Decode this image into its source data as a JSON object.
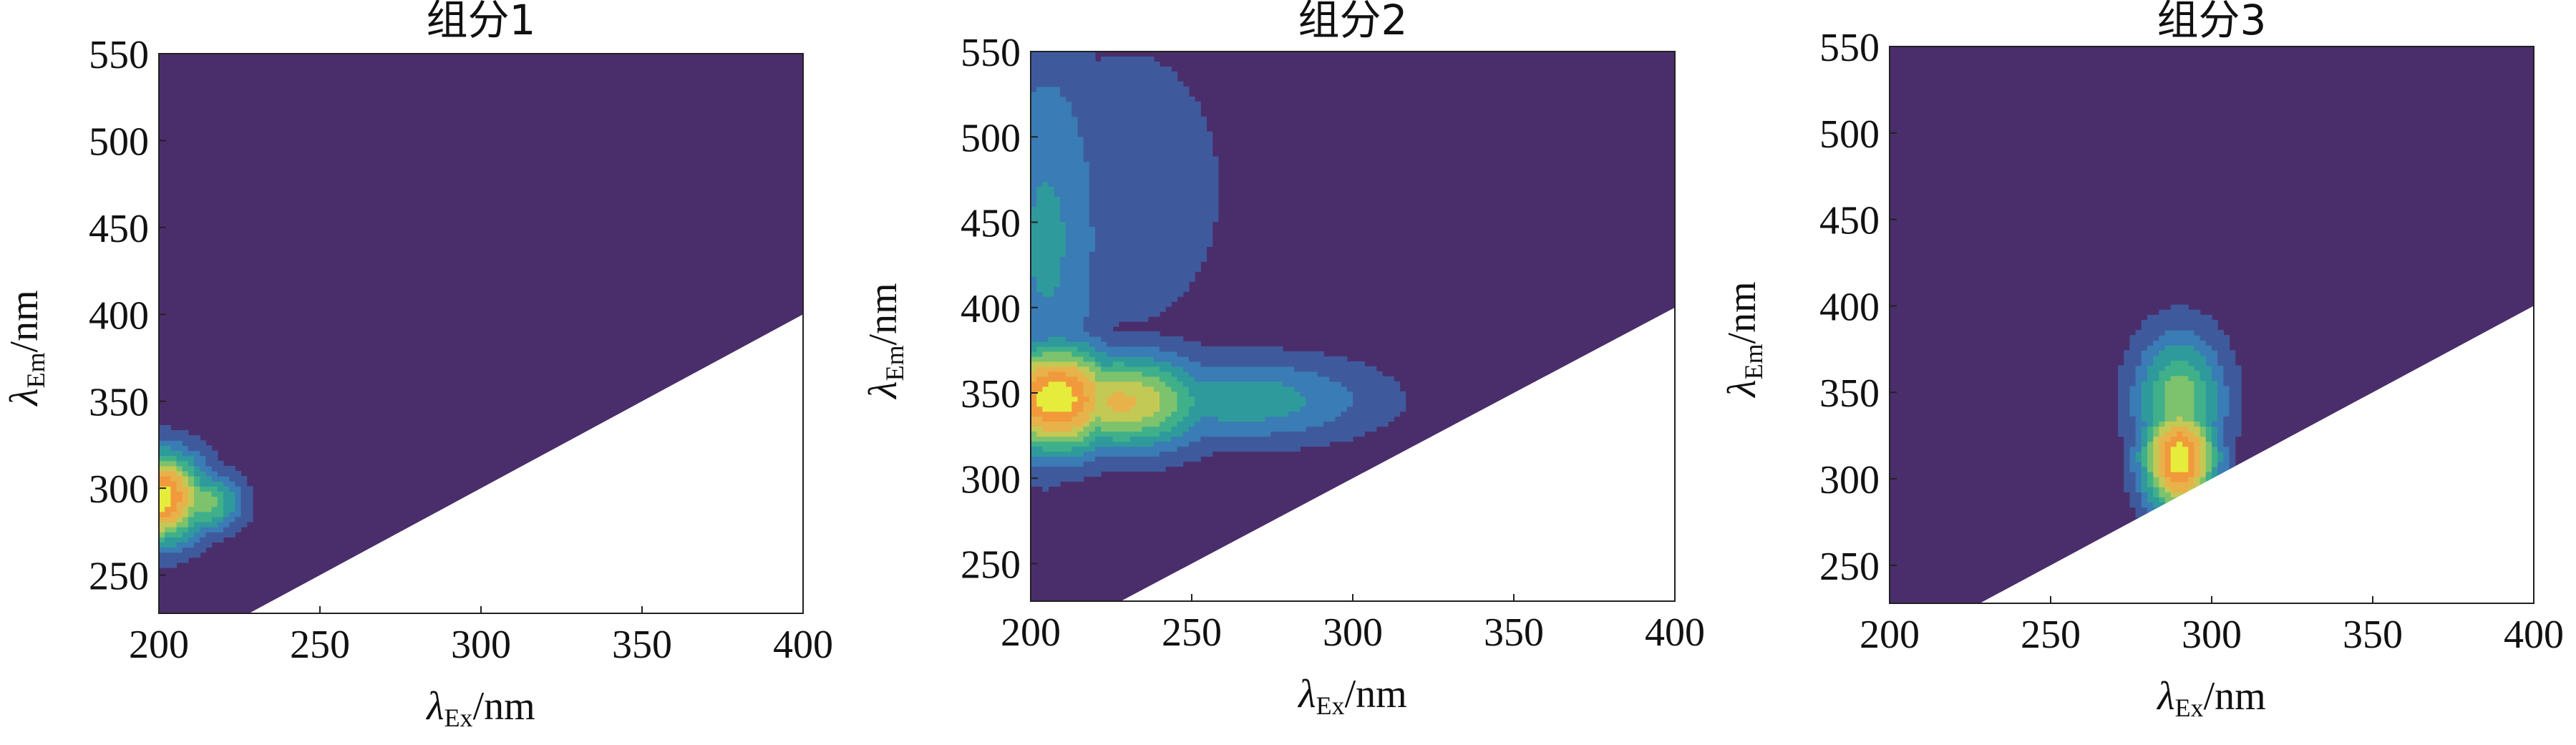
{
  "chart_data": [
    {
      "type": "contour",
      "title": "组分1",
      "xlabel": {
        "symbol": "λ",
        "sub": "Ex",
        "unit": "/nm"
      },
      "ylabel": {
        "symbol": "λ",
        "sub": "Em",
        "unit": "/nm"
      },
      "xlim": [
        200,
        400
      ],
      "ylim": [
        228,
        550
      ],
      "xticks": [
        200,
        250,
        300,
        350,
        400
      ],
      "yticks": [
        250,
        300,
        350,
        400,
        450,
        500,
        550
      ],
      "background_color": "#4a2e6b",
      "masked_region": "Em < Ex (lower-right triangle, white)",
      "peaks": [
        {
          "ex": 200,
          "em": 295,
          "intensity": 1.0,
          "sx": 10,
          "sy": 18
        },
        {
          "ex": 214,
          "em": 292,
          "intensity": 0.55,
          "sx": 8,
          "sy": 12
        }
      ]
    },
    {
      "type": "contour",
      "title": "组分2",
      "xlabel": {
        "symbol": "λ",
        "sub": "Ex",
        "unit": "/nm"
      },
      "ylabel": {
        "symbol": "λ",
        "sub": "Em",
        "unit": "/nm"
      },
      "xlim": [
        200,
        400
      ],
      "ylim": [
        228,
        550
      ],
      "xticks": [
        200,
        250,
        300,
        350,
        400
      ],
      "yticks": [
        250,
        300,
        350,
        400,
        450,
        500,
        550
      ],
      "background_color": "#4a2e6b",
      "masked_region": "Em < Ex (lower-right triangle, white)",
      "peaks": [
        {
          "ex": 208,
          "em": 347,
          "intensity": 1.0,
          "sx": 14,
          "sy": 22
        },
        {
          "ex": 228,
          "em": 345,
          "intensity": 0.7,
          "sx": 20,
          "sy": 20
        },
        {
          "ex": 265,
          "em": 346,
          "intensity": 0.35,
          "sx": 30,
          "sy": 18
        },
        {
          "ex": 205,
          "em": 440,
          "intensity": 0.3,
          "sx": 14,
          "sy": 90
        },
        {
          "ex": 230,
          "em": 470,
          "intensity": 0.15,
          "sx": 25,
          "sy": 70
        }
      ]
    },
    {
      "type": "contour",
      "title": "组分3",
      "xlabel": {
        "symbol": "λ",
        "sub": "Ex",
        "unit": "/nm"
      },
      "ylabel": {
        "symbol": "λ",
        "sub": "Em",
        "unit": "/nm"
      },
      "xlim": [
        200,
        400
      ],
      "ylim": [
        228,
        550
      ],
      "xticks": [
        200,
        250,
        300,
        350,
        400
      ],
      "yticks": [
        250,
        300,
        350,
        400,
        450,
        500,
        550
      ],
      "background_color": "#4a2e6b",
      "masked_region": "Em < Ex (lower-right triangle, white)",
      "peaks": [
        {
          "ex": 290,
          "em": 312,
          "intensity": 1.0,
          "sx": 8,
          "sy": 22
        },
        {
          "ex": 290,
          "em": 345,
          "intensity": 0.55,
          "sx": 10,
          "sy": 28
        }
      ]
    }
  ],
  "colorscale": [
    "#4a2e6b",
    "#3f5a9c",
    "#3a7cb5",
    "#2f9a9c",
    "#3fb08a",
    "#7dc26d",
    "#c3c955",
    "#e8b24b",
    "#f19a3c",
    "#e6ec3b"
  ]
}
